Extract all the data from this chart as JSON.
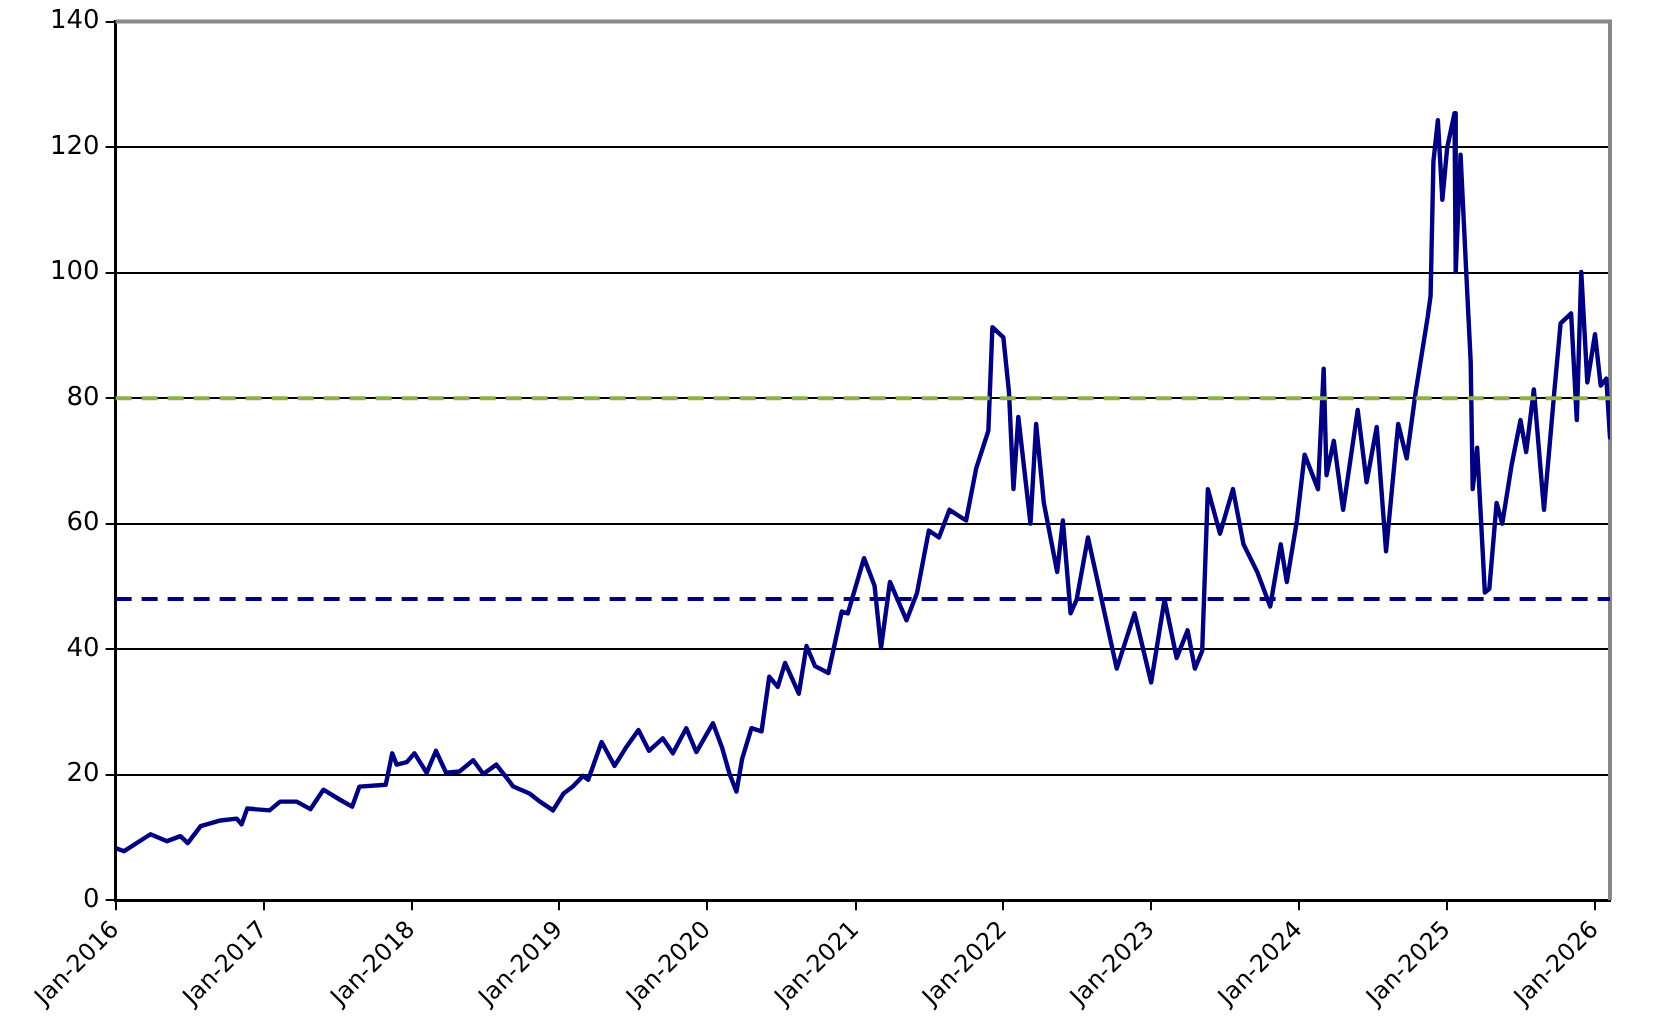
{
  "chart_data": {
    "type": "line",
    "grid": "y",
    "legend": false,
    "marker": "none",
    "line_style": "solid",
    "xlim": [
      "2016-01-01",
      "2026-02-07"
    ],
    "xticks": [
      {
        "value": "2016-01",
        "label": "Jan-2016"
      },
      {
        "value": "2017-01",
        "label": "Jan-2017"
      },
      {
        "value": "2018-01",
        "label": "Jan-2018"
      },
      {
        "value": "2019-01",
        "label": "Jan-2019"
      },
      {
        "value": "2020-01",
        "label": "Jan-2020"
      },
      {
        "value": "2021-01",
        "label": "Jan-2021"
      },
      {
        "value": "2022-01",
        "label": "Jan-2022"
      },
      {
        "value": "2023-01",
        "label": "Jan-2023"
      },
      {
        "value": "2024-01",
        "label": "Jan-2024"
      },
      {
        "value": "2025-01",
        "label": "Jan-2025"
      },
      {
        "value": "2026-01",
        "label": "Jan-2026"
      }
    ],
    "ylim": [
      0,
      140
    ],
    "yticks": [
      0,
      20,
      40,
      60,
      80,
      100,
      120,
      140
    ],
    "ref_lines": [
      {
        "axis": "y",
        "value": 80,
        "color": "#8db04a",
        "line_style": "dashed"
      },
      {
        "axis": "y",
        "value": 48,
        "color": "#000080",
        "line_style": "dashed"
      }
    ],
    "series": [
      {
        "color": "#000080",
        "x": [
          "2016-01-01",
          "2016-01-22",
          "2016-03-27",
          "2016-05-07",
          "2016-06-09",
          "2016-06-27",
          "2016-07-29",
          "2016-09-16",
          "2016-10-26",
          "2016-11-07",
          "2016-11-21",
          "2017-01-15",
          "2017-02-10",
          "2017-03-23",
          "2017-04-26",
          "2017-05-28",
          "2017-07-08",
          "2017-08-07",
          "2017-08-25",
          "2017-10-29",
          "2017-11-14",
          "2017-11-25",
          "2017-12-20",
          "2018-01-08",
          "2018-02-07",
          "2018-03-02",
          "2018-03-27",
          "2018-04-29",
          "2018-06-02",
          "2018-06-27",
          "2018-07-29",
          "2018-08-14",
          "2018-09-09",
          "2018-10-19",
          "2018-11-14",
          "2018-12-16",
          "2019-01-11",
          "2019-02-03",
          "2019-02-28",
          "2019-03-13",
          "2019-04-15",
          "2019-05-17",
          "2019-06-13",
          "2019-07-15",
          "2019-08-10",
          "2019-09-13",
          "2019-10-08",
          "2019-11-10",
          "2019-12-05",
          "2020-01-15",
          "2020-02-07",
          "2020-02-25",
          "2020-03-13",
          "2020-03-27",
          "2020-04-19",
          "2020-05-14",
          "2020-06-02",
          "2020-06-23",
          "2020-07-11",
          "2020-08-14",
          "2020-09-02",
          "2020-09-23",
          "2020-10-26",
          "2020-11-28",
          "2020-12-13",
          "2021-01-22",
          "2021-02-17",
          "2021-03-05",
          "2021-03-27",
          "2021-05-07",
          "2021-06-02",
          "2021-07-01",
          "2021-07-26",
          "2021-08-21",
          "2021-10-01",
          "2021-10-26",
          "2021-11-25",
          "2021-12-05",
          "2022-01-01",
          "2022-01-15",
          "2022-01-26",
          "2022-02-07",
          "2022-03-09",
          "2022-03-23",
          "2022-04-11",
          "2022-05-14",
          "2022-05-28",
          "2022-06-16",
          "2022-07-01",
          "2022-07-29",
          "2022-08-28",
          "2022-10-08",
          "2022-11-21",
          "2023-01-01",
          "2023-02-03",
          "2023-03-05",
          "2023-04-01",
          "2023-04-19",
          "2023-05-07",
          "2023-05-21",
          "2023-06-20",
          "2023-07-22",
          "2023-08-17",
          "2023-09-20",
          "2023-10-22",
          "2023-11-17",
          "2023-12-02",
          "2023-12-27",
          "2024-01-15",
          "2024-02-17",
          "2024-03-02",
          "2024-03-09",
          "2024-03-27",
          "2024-04-19",
          "2024-05-25",
          "2024-06-16",
          "2024-07-11",
          "2024-08-03",
          "2024-09-02",
          "2024-09-23",
          "2024-10-15",
          "2024-11-14",
          "2024-11-21",
          "2024-11-28",
          "2024-12-09",
          "2024-12-20",
          "2025-01-01",
          "2025-01-19",
          "2025-01-22",
          "2025-02-03",
          "2025-02-17",
          "2025-02-28",
          "2025-03-05",
          "2025-03-16",
          "2025-04-04",
          "2025-04-15",
          "2025-05-03",
          "2025-05-17",
          "2025-06-09",
          "2025-07-01",
          "2025-07-15",
          "2025-08-03",
          "2025-08-28",
          "2025-09-23",
          "2025-10-08",
          "2025-11-03",
          "2025-11-17",
          "2025-11-28",
          "2025-12-13",
          "2026-01-01",
          "2026-01-15",
          "2026-01-29",
          "2026-02-07"
        ],
        "values": [
          8.3,
          7.8,
          10.5,
          9.4,
          10.2,
          9.1,
          11.8,
          12.7,
          13,
          12.1,
          14.6,
          14.3,
          15.7,
          15.7,
          14.5,
          17.6,
          16,
          14.9,
          18.1,
          18.4,
          23.4,
          21.6,
          22,
          23.4,
          20.3,
          23.8,
          20.3,
          20.5,
          22.3,
          20.1,
          21.6,
          20.3,
          18.1,
          17,
          15.7,
          14.3,
          17,
          18.1,
          19.8,
          19.2,
          25.2,
          21.4,
          24.2,
          27.1,
          23.8,
          25.8,
          23.4,
          27.4,
          23.6,
          28.2,
          24.2,
          20.1,
          17.3,
          22.5,
          27.4,
          26.9,
          35.6,
          34,
          37.8,
          32.9,
          40.5,
          37.3,
          36.2,
          46,
          45.7,
          54.5,
          50.1,
          40.2,
          50.7,
          44.6,
          49,
          58.9,
          57.8,
          62.2,
          60.5,
          68.8,
          74.8,
          91.3,
          89.7,
          80.9,
          65.5,
          77,
          60,
          75.9,
          63.3,
          52.3,
          60.5,
          45.7,
          47.9,
          57.8,
          49,
          36.9,
          45.7,
          34.7,
          47.9,
          38.6,
          43,
          36.9,
          39.7,
          65.5,
          58.4,
          65.5,
          56.7,
          52.3,
          46.8,
          56.7,
          50.7,
          60.5,
          71,
          65.5,
          84.7,
          67.7,
          73.2,
          62.2,
          78.1,
          66.6,
          75.4,
          55.6,
          75.9,
          70.4,
          80.9,
          93,
          96.3,
          117.7,
          124.3,
          111.6,
          119.9,
          125.4,
          100.1,
          118.8,
          100.1,
          85.8,
          65.5,
          72.1,
          49,
          49.6,
          63.3,
          60,
          69.3,
          76.5,
          71.4,
          81.4,
          62.2,
          81.4,
          91.9,
          93.5,
          76.5,
          100.1,
          82.5,
          90.2,
          82,
          83.1,
          73.7
        ]
      }
    ]
  }
}
